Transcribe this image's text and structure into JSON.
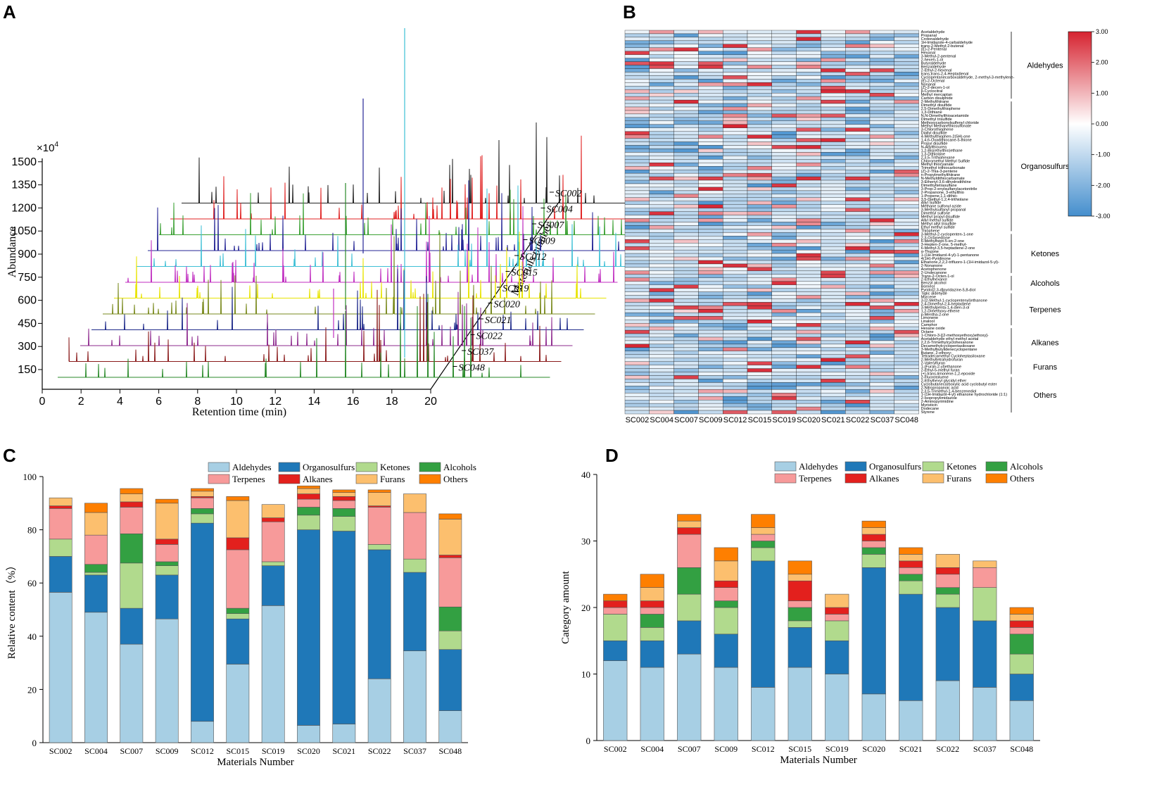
{
  "panels": {
    "a": "A",
    "b": "B",
    "c": "C",
    "d": "D"
  },
  "colors": {
    "Aldehydes": "#a7cfe4",
    "Organosulfurs": "#1f78b8",
    "Ketones": "#b1da8d",
    "Alcohols": "#33a042",
    "Terpenes": "#f79a9a",
    "Alkanes": "#e3201d",
    "Furans": "#fcbf6e",
    "Others": "#fe7f00"
  },
  "samples": [
    "SC002",
    "SC004",
    "SC007",
    "SC009",
    "SC012",
    "SC015",
    "SC019",
    "SC020",
    "SC021",
    "SC022",
    "SC037",
    "SC048"
  ],
  "categories_order": [
    "Aldehydes",
    "Organosulfurs",
    "Ketones",
    "Alcohols",
    "Terpenes",
    "Alkanes",
    "Furans",
    "Others"
  ],
  "chart_data": [
    {
      "id": "A",
      "type": "line",
      "title": "",
      "xlabel": "Retention time (min)",
      "ylabel": "Abundance",
      "zlabel": "Materials number",
      "y_multiplier": "×10",
      "y_multiplier_exp": "4",
      "xticks": [
        0,
        2,
        4,
        6,
        8,
        10,
        12,
        14,
        16,
        18,
        20
      ],
      "yticks": [
        150,
        300,
        450,
        600,
        750,
        900,
        1050,
        1200,
        1350,
        1500
      ],
      "series": [
        {
          "name": "SC002",
          "color": "#222222"
        },
        {
          "name": "SC004",
          "color": "#e02020"
        },
        {
          "name": "SC007",
          "color": "#3aa032"
        },
        {
          "name": "SC009",
          "color": "#262696"
        },
        {
          "name": "SC012",
          "color": "#3ec0d6"
        },
        {
          "name": "SC015",
          "color": "#c02ec0"
        },
        {
          "name": "SC019",
          "color": "#e8e400"
        },
        {
          "name": "SC020",
          "color": "#7a8a1e"
        },
        {
          "name": "SC021",
          "color": "#1e2a8a"
        },
        {
          "name": "SC022",
          "color": "#8e2a8e"
        },
        {
          "name": "SC037",
          "color": "#8a1a1a"
        },
        {
          "name": "SC048",
          "color": "#2a8a2a"
        }
      ]
    },
    {
      "id": "B",
      "type": "heatmap",
      "scale_ticks": [
        "3.00",
        "2.00",
        "1.00",
        "0.00",
        "-1.00",
        "-2.00",
        "-3.00"
      ],
      "scale_range": [
        -3,
        3
      ],
      "groups": [
        {
          "name": "Aldehydes",
          "start": 0,
          "count": 20
        },
        {
          "name": "Organosulfurs",
          "start": 20,
          "count": 38
        },
        {
          "name": "Ketones",
          "start": 58,
          "count": 12
        },
        {
          "name": "Alcohols",
          "start": 70,
          "count": 5
        },
        {
          "name": "Terpenes",
          "start": 75,
          "count": 10
        },
        {
          "name": "Alkanes",
          "start": 85,
          "count": 9
        },
        {
          "name": "Furans",
          "start": 94,
          "count": 5
        },
        {
          "name": "Others",
          "start": 99,
          "count": 11
        }
      ],
      "compounds": [
        "Acetaldehyde",
        "Propanal",
        "Crotonaldehyde",
        "1H-Imidazole-4-carbaldehyde",
        "trans-2-Methyl-2-butenal",
        "(E)-2-Pentenal",
        "Hexanal",
        "3-Methyl-2-pentenal",
        "2-hexen-1-ol",
        "Butyraldehyde",
        "Benzaldehyde",
        "2-Ethyl-2-hexenal",
        "trans,trans-2,4-Heptadienal",
        "Cyclopentanecarboxaldehyde, 2-methyl-3-methylene-",
        "(E)-2-Octenal",
        "Nonanal",
        "(Z)-2-decen-1-ol",
        "β-Cyclocitral",
        "Methyl mercaptan",
        "Carbon disulphide",
        "2-Methylthiirane",
        "Dimethyl disulfide",
        "2,5-Dimethylthiophene",
        "1,3-Dithiane",
        "N,N-Dimethylthioacetamide",
        "Dimethyl trisulfide",
        "Methoxycarbonylsulfenyl chloride",
        "Methyl Methanethiosulfonate",
        "3-Chlorothiophene",
        "Diallyl disulfide",
        "4-Methylthiophen-2(5H)-one",
        "1,4,6-Oxadithiocane-5-thione",
        "Propyl disulfide",
        "N-Allylthiourea",
        "1,2-Bis(ethylthio)ethane",
        "1,3-Dithiolane",
        "2,3,5-Trithiahexane",
        "Chloromethyl Methyl Sulfide",
        "Methyl thiocyanate",
        "Trimethyl trithiocarbonate",
        "(Z)-2-Thia-3-pentene",
        "n-Propylmethylthiirane",
        "N-Methyldithiocarbamate",
        "3-Ethenyl-3,6-dihydrodithiine",
        "Dimethyltetrasulfane",
        "3-Prop-2-enylsulfanylacetonitrile",
        "2-Propanone, 3-ethylthio",
        "1-Propene,1,1-dithio-",
        "3,5-Diethyl-1,2,4-trithiolane",
        "Allyl Sulfide",
        "Methane sulfonyl azide",
        "3-Methylsulfanyl propanal",
        "Dimethyl sulfone",
        "Methyl propyl disulfide",
        "Allyl methyl sulfide",
        "Methyl allyl trisulfide",
        "Ethyl methyl sulfide",
        "Thiophene",
        "3-Methyl-2-cyclopenten-1-one",
        "2,3-Octanedione",
        "6-Methylhept-5-en-2-one",
        "3-Hepten-2-one, 5-methyl-",
        "6-Methyl-3,5-heptadiene-2-one",
        "α-Thujone",
        "1-(1H-Imidazol-4-yl)-1-pentanone",
        "4(1H)-Pyridinone",
        "Ethanone,2,2,2-trifluoro-1-(1H-imidazol-5-yl)-",
        "2-Nonanone",
        "Acetophenone",
        "2-Undecanone",
        "Trans-2-Octen-1-ol",
        "2-Ethylhexanol",
        "Benzyl alcohol",
        "Borneol",
        "Pyrido[2,3-d]pyridazine-5,8-diol",
        "Tiglic aldehyde",
        "Myrcene",
        "3-(2-Methyl-1-cyclopentenyl)ethanone",
        "2,4-Dimethyl-2,4-heptadiene",
        "3-Methylpenta-1,4-dien-3-ol",
        "1,2-Dimethoxy-ethene",
        "p-Mentha-2-one",
        "Limonene",
        "Linalool",
        "Camphor",
        "Hexane oxide",
        "Octane",
        "1-Chloro-3-[(2-methoxyethoxy)ethoxy]-",
        "Acetaldehyde ethyl methyl acetal",
        "2,2,6-Trimethylcyclohexanone",
        "Decamethylcyclopentasiloxane",
        "3-Methylbutylidenecyclopentane",
        "Butane, 2-ethoxy-",
        "Tetradecamethyl Cycloheptasiloxane",
        "2-Methyltetrahydrofuran",
        "2-Valerylfuran",
        "1-(Furan-2-yl)ethanone",
        "2-Ethyl-5-methyl furan",
        "(+)-trans-limonene-1,2-epoxide",
        "2-Fluorotoluene",
        "2-Ethylhexyl glycidyl ether",
        "Cyclobutanecarboxylic acid cyclobutyl ester",
        "2-Nitropropanoic acid",
        "2,3,5-Trimethyl-1,4-benzenediol",
        "1-(1H-Imidazol-4-yl) ethanone hydrochloride (1:1)",
        "2-Isopropylimidazole",
        "2-Aminopyrimidine",
        "Myristicin",
        "Dodecane",
        "Styrene"
      ],
      "values_seed": 20240
    },
    {
      "id": "C",
      "type": "bar",
      "stacked": true,
      "xlabel": "Materials Number",
      "ylabel": "Relative content（%）",
      "ylim": [
        0,
        100
      ],
      "yticks": [
        0,
        20,
        40,
        60,
        80,
        100
      ],
      "categories": [
        "SC002",
        "SC004",
        "SC007",
        "SC009",
        "SC012",
        "SC015",
        "SC019",
        "SC020",
        "SC021",
        "SC022",
        "SC037",
        "SC048"
      ],
      "series": [
        {
          "name": "Aldehydes",
          "values": [
            56.5,
            49,
            37,
            46.5,
            8,
            29.5,
            51.5,
            6.5,
            7,
            24,
            34.5,
            12
          ]
        },
        {
          "name": "Organosulfurs",
          "values": [
            13.5,
            14,
            13.5,
            16.5,
            74.5,
            17,
            15,
            73.5,
            72.5,
            48.5,
            29.5,
            23
          ]
        },
        {
          "name": "Ketones",
          "values": [
            6.5,
            1,
            17,
            3.5,
            3.5,
            2,
            1.5,
            5.5,
            5.5,
            2,
            5,
            7
          ]
        },
        {
          "name": "Alcohols",
          "values": [
            0,
            3,
            11,
            1.5,
            2,
            2,
            0,
            3,
            3,
            0,
            0,
            9
          ]
        },
        {
          "name": "Terpenes",
          "values": [
            11.5,
            11,
            10,
            6.5,
            4,
            22,
            15,
            3,
            3,
            14,
            17.5,
            18.5
          ]
        },
        {
          "name": "Alkanes",
          "values": [
            1,
            0,
            2,
            2,
            0.5,
            4.5,
            1.5,
            2,
            1.5,
            0.5,
            0,
            1
          ]
        },
        {
          "name": "Furans",
          "values": [
            3,
            8.5,
            3,
            13.5,
            2,
            14,
            5,
            2,
            1.5,
            5,
            7,
            13.5
          ]
        },
        {
          "name": "Others",
          "values": [
            0,
            3.5,
            2,
            1.5,
            1,
            1.5,
            0,
            1,
            1,
            1,
            0,
            2
          ]
        }
      ]
    },
    {
      "id": "D",
      "type": "bar",
      "stacked": true,
      "xlabel": "Materials Number",
      "ylabel": "Category amount",
      "ylim": [
        0,
        40
      ],
      "yticks": [
        0,
        10,
        20,
        30,
        40
      ],
      "categories": [
        "SC002",
        "SC004",
        "SC007",
        "SC009",
        "SC012",
        "SC015",
        "SC019",
        "SC020",
        "SC021",
        "SC022",
        "SC037",
        "SC048"
      ],
      "series": [
        {
          "name": "Aldehydes",
          "values": [
            12,
            11,
            13,
            11,
            8,
            11,
            10,
            7,
            6,
            9,
            8,
            6
          ]
        },
        {
          "name": "Organosulfurs",
          "values": [
            3,
            4,
            5,
            5,
            19,
            6,
            5,
            19,
            16,
            11,
            10,
            4
          ]
        },
        {
          "name": "Ketones",
          "values": [
            4,
            2,
            4,
            4,
            2,
            1,
            3,
            2,
            2,
            2,
            5,
            3
          ]
        },
        {
          "name": "Alcohols",
          "values": [
            0,
            2,
            4,
            1,
            1,
            2,
            0,
            1,
            1,
            1,
            0,
            3
          ]
        },
        {
          "name": "Terpenes",
          "values": [
            1,
            1,
            5,
            2,
            1,
            1,
            1,
            1,
            1,
            2,
            3,
            1
          ]
        },
        {
          "name": "Alkanes",
          "values": [
            1,
            1,
            1,
            1,
            0,
            3,
            1,
            1,
            1,
            1,
            0,
            1
          ]
        },
        {
          "name": "Furans",
          "values": [
            0,
            2,
            1,
            3,
            1,
            1,
            2,
            1,
            1,
            2,
            1,
            1
          ]
        },
        {
          "name": "Others",
          "values": [
            1,
            2,
            1,
            2,
            2,
            2,
            0,
            1,
            1,
            0,
            0,
            1
          ]
        }
      ]
    }
  ]
}
